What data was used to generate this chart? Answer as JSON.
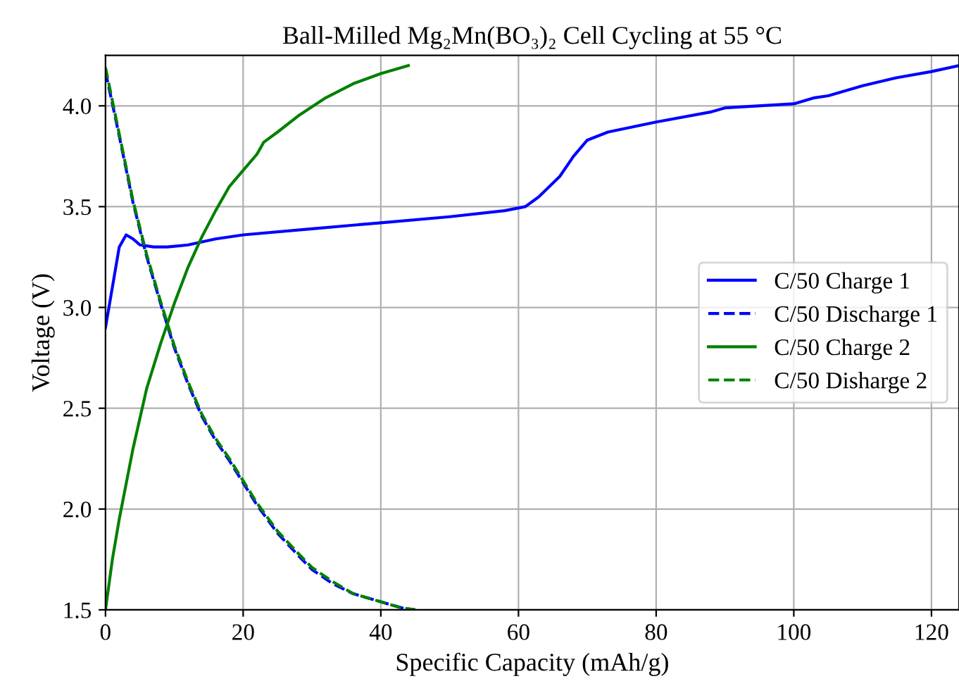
{
  "chart_data": {
    "type": "line",
    "title": "Ball-Milled Mg₂Mn(BO₃)₂ Cell Cycling at 55 °C",
    "xlabel": "Specific Capacity (mAh/g)",
    "ylabel": "Voltage (V)",
    "xlim": [
      0,
      124
    ],
    "ylim": [
      1.5,
      4.25
    ],
    "xticks": [
      0,
      20,
      40,
      60,
      80,
      100,
      120
    ],
    "yticks": [
      {
        "value": 1.5,
        "label": "1.5"
      },
      {
        "value": 2.0,
        "label": "2.0"
      },
      {
        "value": 2.5,
        "label": "2.5"
      },
      {
        "value": 3.0,
        "label": "3.0"
      },
      {
        "value": 3.5,
        "label": "3.5"
      },
      {
        "value": 4.0,
        "label": "4.0"
      }
    ],
    "grid": true,
    "legend": "right",
    "series": [
      {
        "name": "C/50 Charge 1",
        "color": "#0000ff",
        "line_style": "solid",
        "x": [
          0,
          1,
          2,
          3,
          4,
          5,
          7,
          9,
          12,
          16,
          20,
          30,
          40,
          50,
          58,
          61,
          63,
          66,
          68,
          70,
          73,
          80,
          88,
          90,
          100,
          103,
          105,
          110,
          115,
          120,
          124
        ],
        "values": [
          2.9,
          3.1,
          3.3,
          3.36,
          3.34,
          3.31,
          3.3,
          3.3,
          3.31,
          3.34,
          3.36,
          3.39,
          3.42,
          3.45,
          3.48,
          3.5,
          3.55,
          3.65,
          3.75,
          3.83,
          3.87,
          3.92,
          3.97,
          3.99,
          4.01,
          4.04,
          4.05,
          4.1,
          4.14,
          4.17,
          4.2
        ]
      },
      {
        "name": "C/50 Discharge 1",
        "color": "#0000ff",
        "line_style": "dashed",
        "x": [
          0,
          2,
          4,
          6,
          8,
          10,
          12,
          14,
          16,
          18,
          20,
          22,
          25,
          28,
          30,
          33,
          36,
          40,
          43,
          45
        ],
        "values": [
          4.17,
          3.85,
          3.52,
          3.25,
          3.02,
          2.8,
          2.62,
          2.46,
          2.34,
          2.24,
          2.13,
          2.02,
          1.88,
          1.77,
          1.7,
          1.63,
          1.58,
          1.54,
          1.51,
          1.5
        ]
      },
      {
        "name": "C/50 Charge 2",
        "color": "#008000",
        "line_style": "solid",
        "x": [
          0,
          1,
          2,
          4,
          6,
          8,
          10,
          12,
          14,
          16,
          18,
          20,
          22,
          23,
          25,
          28,
          32,
          36,
          40,
          44
        ],
        "values": [
          1.5,
          1.75,
          1.95,
          2.3,
          2.6,
          2.82,
          3.02,
          3.2,
          3.35,
          3.48,
          3.6,
          3.68,
          3.76,
          3.82,
          3.87,
          3.95,
          4.04,
          4.11,
          4.16,
          4.2
        ]
      },
      {
        "name": "C/50 Disharge 2",
        "color": "#008000",
        "line_style": "dashed",
        "x": [
          0,
          2,
          4,
          6,
          8,
          10,
          12,
          14,
          16,
          18,
          20,
          22,
          25,
          28,
          30,
          33,
          36,
          40,
          43,
          45
        ],
        "values": [
          4.19,
          3.86,
          3.53,
          3.26,
          3.03,
          2.81,
          2.63,
          2.47,
          2.35,
          2.25,
          2.14,
          2.03,
          1.89,
          1.78,
          1.71,
          1.64,
          1.58,
          1.54,
          1.51,
          1.5
        ]
      }
    ]
  }
}
